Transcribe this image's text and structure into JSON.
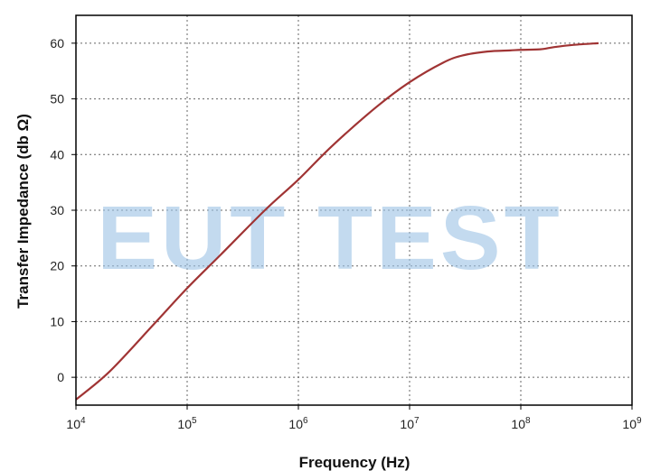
{
  "watermark": "EUT TEST",
  "colors": {
    "series": "#a03434",
    "watermark": "#9cc3e6",
    "axis": "#000000"
  },
  "chart_data": {
    "type": "line",
    "xlabel": "Frequency (Hz)",
    "ylabel": "Transfer Impedance (db Ω)",
    "x_scale": "log",
    "xlim": [
      10000,
      1000000000
    ],
    "ylim": [
      -5,
      65
    ],
    "grid": true,
    "x_ticks": [
      {
        "value": 10000,
        "base": "10",
        "exp": "4"
      },
      {
        "value": 100000,
        "base": "10",
        "exp": "5"
      },
      {
        "value": 1000000,
        "base": "10",
        "exp": "6"
      },
      {
        "value": 10000000,
        "base": "10",
        "exp": "7"
      },
      {
        "value": 100000000,
        "base": "10",
        "exp": "8"
      },
      {
        "value": 1000000000,
        "base": "10",
        "exp": "9"
      }
    ],
    "y_ticks": [
      0,
      10,
      20,
      30,
      40,
      50,
      60
    ],
    "series": [
      {
        "x": [
          10000,
          20000,
          50000,
          100000,
          200000,
          500000,
          1000000,
          2000000,
          5000000,
          10000000,
          20000000,
          30000000,
          50000000,
          80000000,
          100000000,
          150000000,
          200000000,
          300000000,
          500000000
        ],
        "y": [
          -4,
          1,
          9.5,
          16,
          22,
          30,
          35.5,
          41.5,
          48.5,
          53,
          56.5,
          57.8,
          58.5,
          58.7,
          58.8,
          58.9,
          59.3,
          59.7,
          60
        ]
      }
    ]
  }
}
